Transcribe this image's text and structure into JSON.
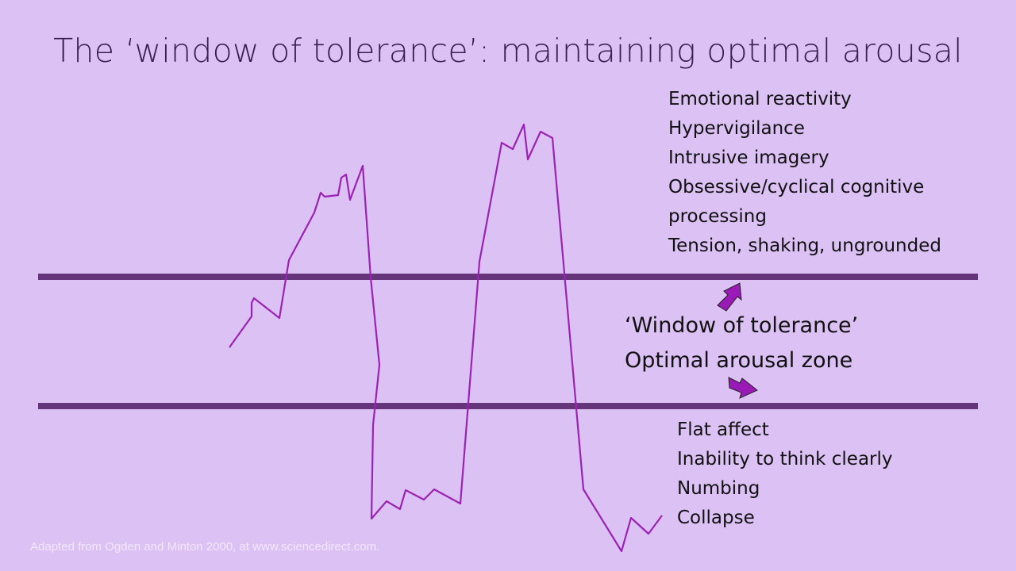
{
  "title": "The ‘window of tolerance’: maintaining optimal arousal",
  "hyperarousal_items": [
    "Emotional reactivity",
    "Hypervigilance",
    "Intrusive imagery",
    "Obsessive/cyclical cognitive",
    "processing",
    "Tension, shaking, ungrounded"
  ],
  "window_label": {
    "line1": "‘Window of tolerance’",
    "line2": "Optimal arousal zone"
  },
  "hypoarousal_items": [
    "Flat affect",
    "Inability to think clearly",
    "Numbing",
    "Collapse"
  ],
  "credit": "Adapted from Ogden and Minton 2000, at www.sciencedirect.com.",
  "colors": {
    "background": "#dcc1f5",
    "boundary": "#65347a",
    "arousal_line": "#9b22b3",
    "arrow": "#9a1ab8"
  }
}
